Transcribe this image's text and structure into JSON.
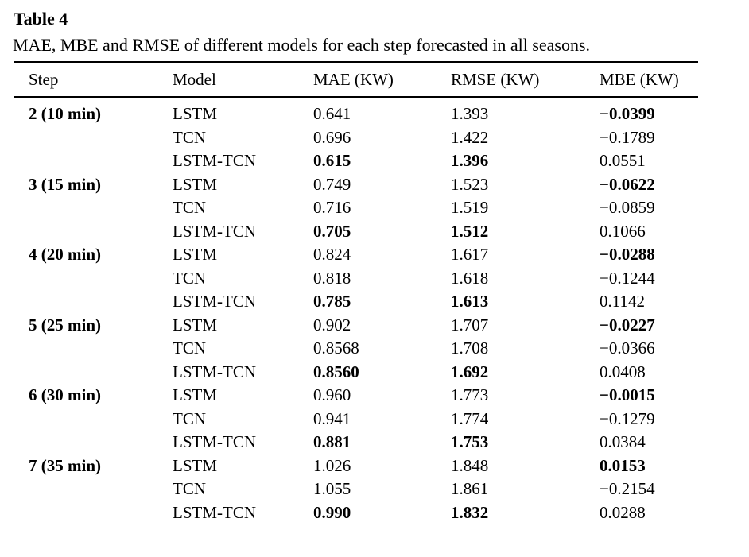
{
  "page": {
    "background_color": "#ffffff",
    "text_color": "#000000"
  },
  "table": {
    "title": "Table 4",
    "caption": "MAE, MBE and RMSE of different models for each step forecasted in all seasons.",
    "columns": [
      "Step",
      "Model",
      "MAE (KW)",
      "RMSE (KW)",
      "MBE (KW)"
    ],
    "row_keys": [
      "step",
      "model",
      "mae",
      "rmse",
      "mbe"
    ],
    "rows": [
      {
        "step": "2 (10 min)",
        "model": "LSTM",
        "mae": "0.641",
        "rmse": "1.393",
        "mbe": "−0.0399",
        "bold": [
          "step",
          "mbe"
        ]
      },
      {
        "step": "",
        "model": "TCN",
        "mae": "0.696",
        "rmse": "1.422",
        "mbe": "−0.1789",
        "bold": []
      },
      {
        "step": "",
        "model": "LSTM-TCN",
        "mae": "0.615",
        "rmse": "1.396",
        "mbe": "0.0551",
        "bold": [
          "mae",
          "rmse"
        ]
      },
      {
        "step": "3 (15 min)",
        "model": "LSTM",
        "mae": "0.749",
        "rmse": "1.523",
        "mbe": "−0.0622",
        "bold": [
          "step",
          "mbe"
        ]
      },
      {
        "step": "",
        "model": "TCN",
        "mae": "0.716",
        "rmse": "1.519",
        "mbe": "−0.0859",
        "bold": []
      },
      {
        "step": "",
        "model": "LSTM-TCN",
        "mae": "0.705",
        "rmse": "1.512",
        "mbe": "0.1066",
        "bold": [
          "mae",
          "rmse"
        ]
      },
      {
        "step": "4 (20 min)",
        "model": "LSTM",
        "mae": "0.824",
        "rmse": "1.617",
        "mbe": "−0.0288",
        "bold": [
          "step",
          "mbe"
        ]
      },
      {
        "step": "",
        "model": "TCN",
        "mae": "0.818",
        "rmse": "1.618",
        "mbe": "−0.1244",
        "bold": []
      },
      {
        "step": "",
        "model": "LSTM-TCN",
        "mae": "0.785",
        "rmse": "1.613",
        "mbe": "0.1142",
        "bold": [
          "mae",
          "rmse"
        ]
      },
      {
        "step": "5 (25 min)",
        "model": "LSTM",
        "mae": "0.902",
        "rmse": "1.707",
        "mbe": "−0.0227",
        "bold": [
          "step",
          "mbe"
        ]
      },
      {
        "step": "",
        "model": "TCN",
        "mae": "0.8568",
        "rmse": "1.708",
        "mbe": "−0.0366",
        "bold": []
      },
      {
        "step": "",
        "model": "LSTM-TCN",
        "mae": "0.8560",
        "rmse": "1.692",
        "mbe": "0.0408",
        "bold": [
          "mae",
          "rmse"
        ]
      },
      {
        "step": "6 (30 min)",
        "model": "LSTM",
        "mae": "0.960",
        "rmse": "1.773",
        "mbe": "−0.0015",
        "bold": [
          "step",
          "mbe"
        ]
      },
      {
        "step": "",
        "model": "TCN",
        "mae": "0.941",
        "rmse": "1.774",
        "mbe": "−0.1279",
        "bold": []
      },
      {
        "step": "",
        "model": "LSTM-TCN",
        "mae": "0.881",
        "rmse": "1.753",
        "mbe": "0.0384",
        "bold": [
          "mae",
          "rmse"
        ]
      },
      {
        "step": "7 (35 min)",
        "model": "LSTM",
        "mae": "1.026",
        "rmse": "1.848",
        "mbe": "0.0153",
        "bold": [
          "step",
          "mbe"
        ]
      },
      {
        "step": "",
        "model": "TCN",
        "mae": "1.055",
        "rmse": "1.861",
        "mbe": "−0.2154",
        "bold": []
      },
      {
        "step": "",
        "model": "LSTM-TCN",
        "mae": "0.990",
        "rmse": "1.832",
        "mbe": "0.0288",
        "bold": [
          "mae",
          "rmse"
        ]
      }
    ]
  }
}
